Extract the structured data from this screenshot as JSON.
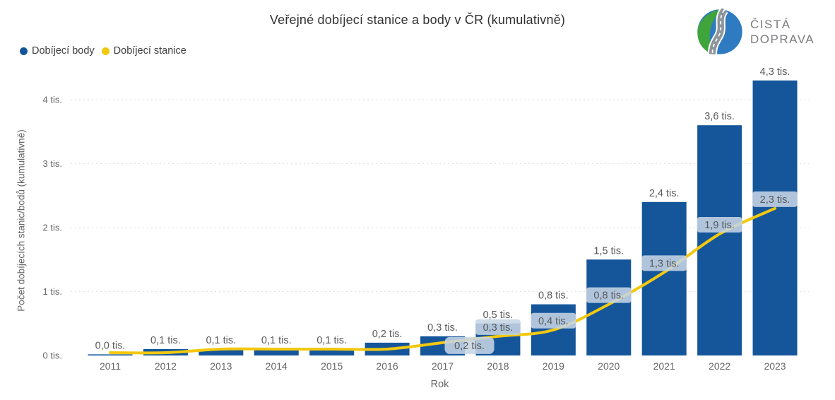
{
  "title": "Veřejné dobíjecí stanice a body v ČR (kumulativně)",
  "logo": {
    "line1": "ČISTÁ",
    "line2": "DOPRAVA"
  },
  "legend": [
    {
      "label": "Dobíjecí body",
      "color": "#15569B"
    },
    {
      "label": "Dobíjecí stanice",
      "color": "#F2C80F"
    }
  ],
  "chart_data": {
    "type": "bar+line combo",
    "title": "Veřejné dobíjecí stanice a body v ČR (kumulativně)",
    "xlabel": "Rok",
    "ylabel": "Počet dobíjecích stanic/bodů (kumulativně)",
    "categories": [
      "2011",
      "2012",
      "2013",
      "2014",
      "2015",
      "2016",
      "2017",
      "2018",
      "2019",
      "2020",
      "2021",
      "2022",
      "2023"
    ],
    "y_ticks": [
      "0 tis.",
      "1 tis.",
      "2 tis.",
      "3 tis.",
      "4 tis."
    ],
    "ylim": [
      0,
      4.5
    ],
    "grid": "dotted horizontal",
    "unit": "tis.",
    "series": [
      {
        "name": "Dobíjecí body",
        "type": "bar",
        "color": "#15569B",
        "values": [
          0.0,
          0.1,
          0.1,
          0.1,
          0.1,
          0.2,
          0.3,
          0.5,
          0.8,
          1.5,
          2.4,
          3.6,
          4.3
        ],
        "labels": [
          "0,0 tis.",
          "0,1 tis.",
          "0,1 tis.",
          "0,1 tis.",
          "0,1 tis.",
          "0,2 tis.",
          "0,3 tis.",
          "0,5 tis.",
          "0,8 tis.",
          "1,5 tis.",
          "2,4 tis.",
          "3,6 tis.",
          "4,3 tis."
        ]
      },
      {
        "name": "Dobíjecí stanice",
        "type": "line",
        "color": "#F2C80F",
        "values": [
          0.0,
          0.0,
          0.1,
          0.1,
          0.1,
          0.1,
          0.2,
          0.3,
          0.4,
          0.8,
          1.3,
          1.9,
          2.3
        ],
        "labels": [
          null,
          null,
          null,
          null,
          null,
          null,
          "0,2 tis.",
          "0,3 tis.",
          "0,4 tis.",
          "0,8 tis.",
          "1,3 tis.",
          "1,9 tis.",
          "2,3 tis."
        ],
        "label_box_color": "rgba(198,213,229,0.88)"
      }
    ],
    "label_text_color": "#595959",
    "axis_text_color": "#666666"
  }
}
